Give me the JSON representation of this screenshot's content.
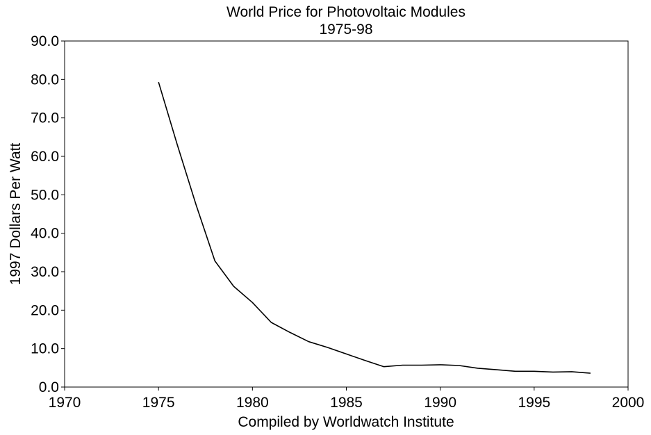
{
  "chart_data": {
    "type": "line",
    "title": "World Price for Photovoltaic Modules",
    "subtitle": "1975-98",
    "xlabel": "Compiled by Worldwatch Institute",
    "ylabel": "1997 Dollars Per Watt",
    "xlim": [
      1970,
      2000
    ],
    "ylim": [
      0,
      90
    ],
    "xticks": [
      "1970",
      "1975",
      "1980",
      "1985",
      "1990",
      "1995",
      "2000"
    ],
    "yticks": [
      "0.0",
      "10.0",
      "20.0",
      "30.0",
      "40.0",
      "50.0",
      "60.0",
      "70.0",
      "80.0",
      "90.0"
    ],
    "grid": false,
    "line_color": "#000000",
    "series": [
      {
        "x": [
          1975,
          1976,
          1977,
          1978,
          1979,
          1980,
          1981,
          1982,
          1983,
          1984,
          1985,
          1986,
          1987,
          1988,
          1989,
          1990,
          1991,
          1992,
          1993,
          1994,
          1995,
          1996,
          1997,
          1998
        ],
        "values": [
          79.3,
          63.0,
          47.4,
          32.8,
          26.2,
          22.0,
          16.8,
          14.2,
          11.8,
          10.3,
          8.6,
          6.9,
          5.3,
          5.7,
          5.7,
          5.8,
          5.6,
          4.9,
          4.5,
          4.1,
          4.1,
          3.9,
          4.0,
          3.6
        ]
      }
    ]
  }
}
